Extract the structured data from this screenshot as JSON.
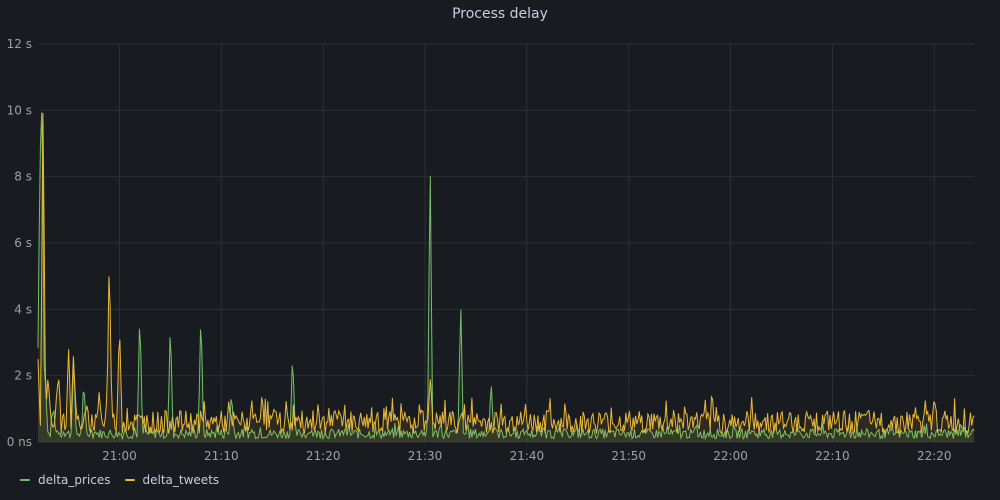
{
  "panel": {
    "title": "Process delay"
  },
  "colors": {
    "background": "#181b1f",
    "grid": "#2c2f35",
    "text": "#ccccdc"
  },
  "legend": [
    {
      "name": "delta_prices",
      "color": "#73bf69"
    },
    {
      "name": "delta_tweets",
      "color": "#eab839"
    }
  ],
  "chart_data": {
    "type": "line",
    "title": "Process delay",
    "xlabel": "",
    "ylabel": "",
    "x_ticks": [
      "21:00",
      "21:10",
      "21:20",
      "21:30",
      "21:40",
      "21:50",
      "22:00",
      "22:10",
      "22:20"
    ],
    "x_range": [
      "20:52",
      "22:24"
    ],
    "y_ticks": [
      "0 ns",
      "2 s",
      "4 s",
      "6 s",
      "8 s",
      "10 s",
      "12 s"
    ],
    "ylim": [
      0,
      12
    ],
    "y_unit": "s",
    "grid": true,
    "legend_position": "bottom-left",
    "series": [
      {
        "name": "delta_prices",
        "color": "#73bf69",
        "baseline": 0.25,
        "noise": 0.15,
        "points": [
          {
            "x": "20:52",
            "y": 1.3
          },
          {
            "x": "20:52.2",
            "y": 9.0
          },
          {
            "x": "20:52.4",
            "y": 11.2
          },
          {
            "x": "20:52.7",
            "y": 2.0
          },
          {
            "x": "20:53.5",
            "y": 1.1
          },
          {
            "x": "20:55.5",
            "y": 2.5
          },
          {
            "x": "20:56.5",
            "y": 1.8
          },
          {
            "x": "21:02",
            "y": 4.0
          },
          {
            "x": "21:05",
            "y": 3.7
          },
          {
            "x": "21:08",
            "y": 4.0
          },
          {
            "x": "21:11",
            "y": 1.5
          },
          {
            "x": "21:17",
            "y": 2.7
          },
          {
            "x": "21:30.5",
            "y": 8.7
          },
          {
            "x": "21:33.5",
            "y": 4.3
          },
          {
            "x": "21:36.5",
            "y": 1.8
          },
          {
            "x": "22:24",
            "y": 0.3
          }
        ]
      },
      {
        "name": "delta_tweets",
        "color": "#eab839",
        "baseline": 0.6,
        "noise": 0.35,
        "points": [
          {
            "x": "20:52",
            "y": 2.5
          },
          {
            "x": "20:52.5",
            "y": 10.7
          },
          {
            "x": "20:53",
            "y": 2.0
          },
          {
            "x": "20:54",
            "y": 2.1
          },
          {
            "x": "20:55",
            "y": 2.8
          },
          {
            "x": "20:55.5",
            "y": 2.7
          },
          {
            "x": "20:58",
            "y": 1.5
          },
          {
            "x": "20:59",
            "y": 5.8
          },
          {
            "x": "21:00",
            "y": 3.6
          },
          {
            "x": "21:14",
            "y": 1.5
          },
          {
            "x": "21:30.5",
            "y": 2.0
          },
          {
            "x": "22:20",
            "y": 1.3
          },
          {
            "x": "22:24",
            "y": 0.8
          }
        ]
      }
    ]
  }
}
